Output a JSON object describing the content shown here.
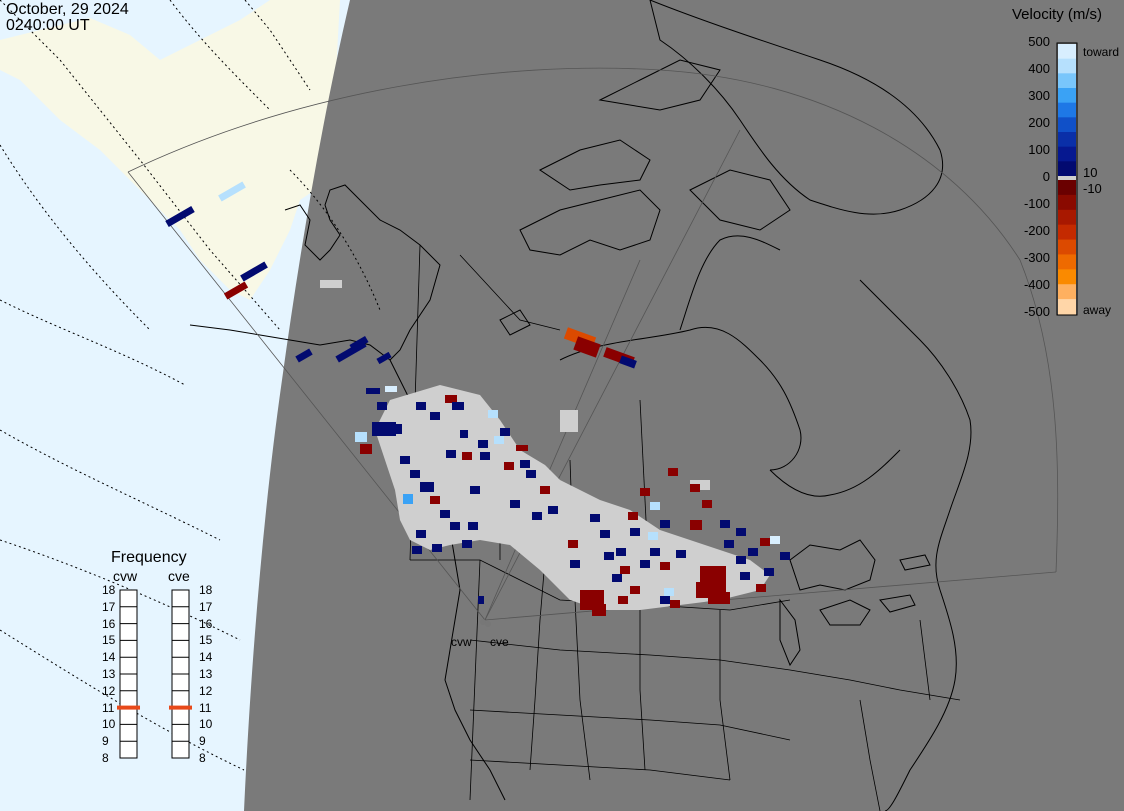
{
  "header": {
    "date": "October, 29 2024",
    "time": "0240:00 UT"
  },
  "colors": {
    "night": "#7a7a7a",
    "ocean_day": "#e6f5ff",
    "land_day": "#f8f8e6",
    "no_data_grey": "#cfcfcf",
    "frequency_marker": "#e8491a"
  },
  "velocity_scale": {
    "title": "Velocity (m/s)",
    "ticks": [
      "500",
      "400",
      "300",
      "200",
      "100",
      "0",
      "-100",
      "-200",
      "-300",
      "-400",
      "-500"
    ],
    "inner_pos": "10",
    "inner_neg": "-10",
    "toward_label": "toward",
    "away_label": "away",
    "colors_toward_top_to_bottom": [
      "#d8eefe",
      "#b6e0fd",
      "#79c6fb",
      "#3aa2f5",
      "#1e78e6",
      "#1050c8",
      "#0a2fa8",
      "#061890",
      "#020a70"
    ],
    "colors_away_top_to_bottom": [
      "#6a0000",
      "#8a0a00",
      "#a81800",
      "#c42a00",
      "#dc4a00",
      "#ee6a00",
      "#fa8a00",
      "#feb060",
      "#ffd6a8"
    ]
  },
  "frequency": {
    "title": "Frequency",
    "radars": [
      "cvw",
      "cve"
    ],
    "levels": [
      "18",
      "17",
      "16",
      "15",
      "14",
      "13",
      "12",
      "11",
      "10",
      "9",
      "8"
    ],
    "cvw_mhz": 11,
    "cve_mhz": 11
  },
  "radar_sites": [
    "cvw",
    "cve"
  ],
  "icons": [
    "coastline-map",
    "radar-fov-outline",
    "velocity-colorbar",
    "frequency-gauge"
  ]
}
